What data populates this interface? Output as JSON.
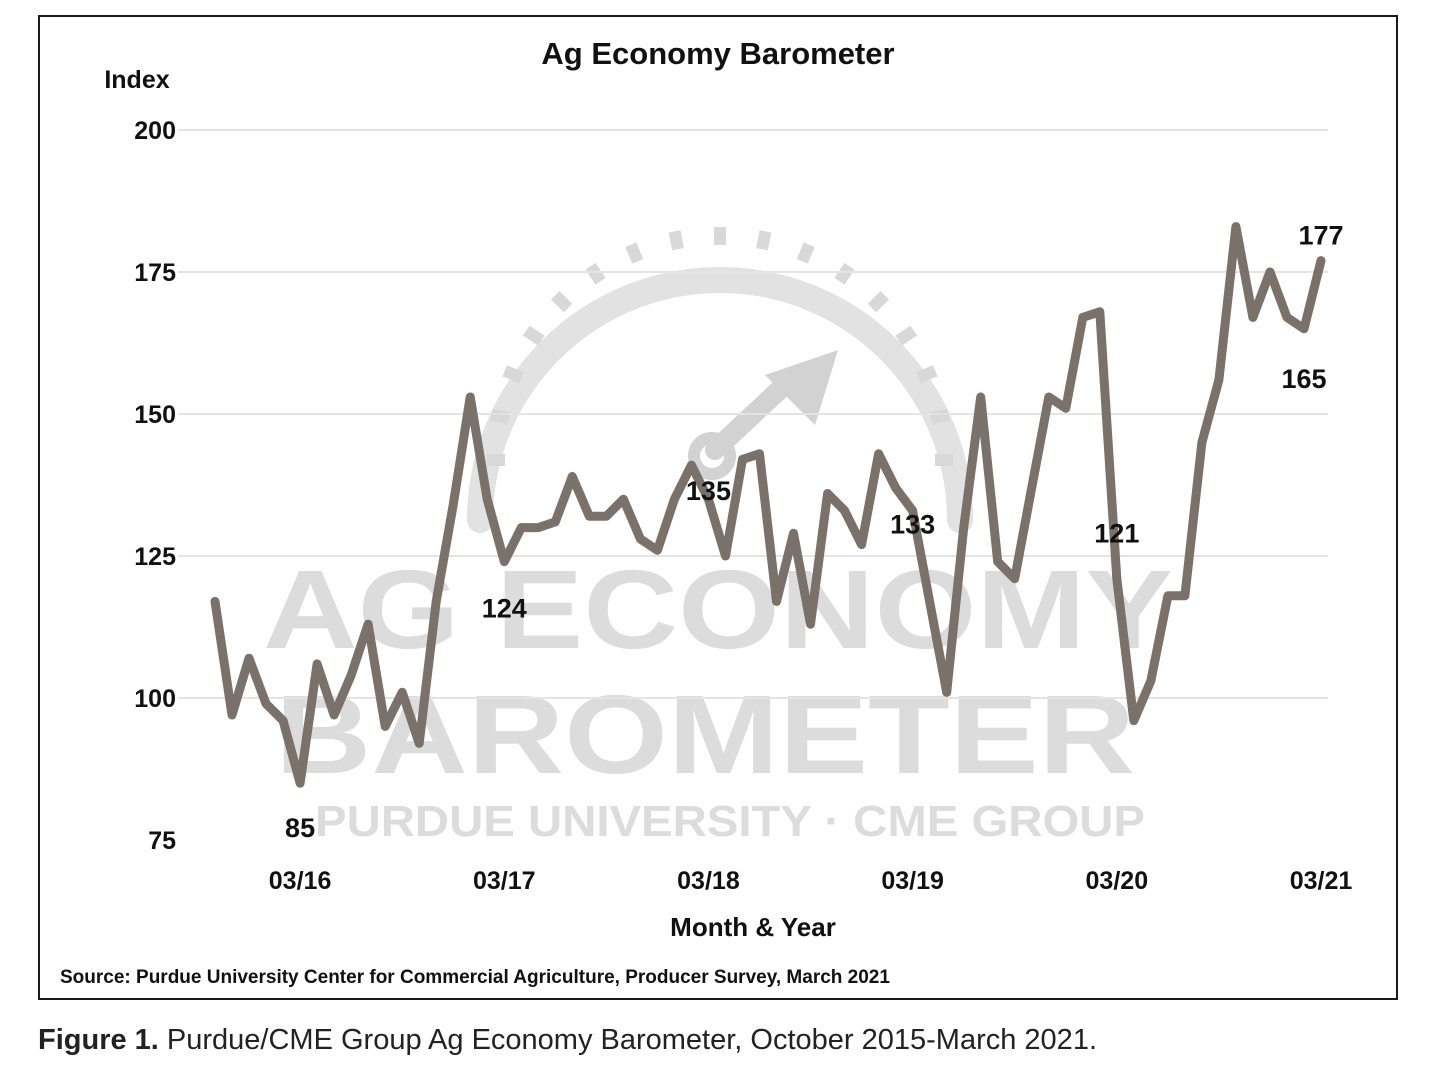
{
  "chart_data": {
    "type": "line",
    "title": "Ag Economy Barometer",
    "ylabel": "Index",
    "xlabel": "Month & Year",
    "ylim": [
      75,
      200
    ],
    "yticks": [
      75,
      100,
      125,
      150,
      175,
      200
    ],
    "xticks": [
      "03/16",
      "03/17",
      "03/18",
      "03/19",
      "03/20",
      "03/21"
    ],
    "grid": true,
    "line_color": "#7a716b",
    "watermark": {
      "line1": "AG ECONOMY",
      "line2": "BAROMETER",
      "line3": "PURDUE UNIVERSITY  ·  CME GROUP"
    },
    "series": [
      {
        "x": [
          "10/15",
          "11/15",
          "12/15",
          "01/16",
          "02/16",
          "03/16",
          "04/16",
          "05/16",
          "06/16",
          "07/16",
          "08/16",
          "09/16",
          "10/16",
          "11/16",
          "12/16",
          "01/17",
          "02/17",
          "03/17",
          "04/17",
          "05/17",
          "06/17",
          "07/17",
          "08/17",
          "09/17",
          "10/17",
          "11/17",
          "12/17",
          "01/18",
          "02/18",
          "03/18",
          "04/18",
          "05/18",
          "06/18",
          "07/18",
          "08/18",
          "09/18",
          "10/18",
          "11/18",
          "12/18",
          "01/19",
          "02/19",
          "03/19",
          "04/19",
          "05/19",
          "06/19",
          "07/19",
          "08/19",
          "09/19",
          "10/19",
          "11/19",
          "12/19",
          "01/20",
          "02/20",
          "03/20",
          "04/20",
          "05/20",
          "06/20",
          "07/20",
          "08/20",
          "09/20",
          "10/20",
          "11/20",
          "12/20",
          "01/21",
          "02/21",
          "03/21"
        ],
        "values": [
          117,
          97,
          107,
          99,
          96,
          85,
          106,
          97,
          104,
          113,
          95,
          101,
          92,
          117,
          134,
          153,
          135,
          124,
          130,
          130,
          131,
          139,
          132,
          132,
          135,
          128,
          126,
          135,
          141,
          135,
          125,
          142,
          143,
          117,
          129,
          113,
          136,
          133,
          127,
          143,
          137,
          133,
          117,
          101,
          130,
          153,
          124,
          121,
          137,
          153,
          151,
          167,
          168,
          121,
          96,
          103,
          118,
          118,
          145,
          156,
          183,
          167,
          175,
          167,
          165,
          177
        ]
      }
    ],
    "annotations": [
      {
        "label": "85",
        "x": "03/16",
        "value": 85
      },
      {
        "label": "124",
        "x": "03/17",
        "value": 124
      },
      {
        "label": "135",
        "x": "03/18",
        "value": 135
      },
      {
        "label": "133",
        "x": "03/19",
        "value": 133
      },
      {
        "label": "121",
        "x": "03/20",
        "value": 121
      },
      {
        "label": "165",
        "x": "02/21",
        "value": 165
      },
      {
        "label": "177",
        "x": "03/21",
        "value": 177
      }
    ],
    "source": "Source: Purdue University Center for Commercial Agriculture, Producer Survey, March 2021"
  },
  "caption": {
    "prefix": "Figure 1.",
    "text": " Purdue/CME Group Ag Economy Barometer, October 2015-March 2021."
  }
}
